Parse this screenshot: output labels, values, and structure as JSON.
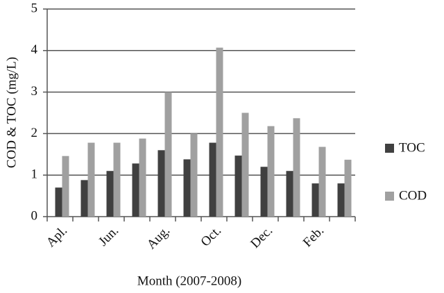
{
  "chart_data": {
    "type": "bar",
    "x_label": "Month (2007-2008)",
    "y_label": "COD & TOC (mg/L)",
    "categories": [
      "Apl.",
      null,
      "Jun.",
      null,
      "Aug.",
      null,
      "Oct.",
      null,
      "Dec.",
      null,
      "Feb.",
      null
    ],
    "series": [
      {
        "name": "TOC",
        "color": "#404040",
        "values": [
          0.7,
          0.88,
          1.1,
          1.28,
          1.6,
          1.38,
          1.78,
          1.47,
          1.2,
          1.1,
          0.8,
          0.8
        ]
      },
      {
        "name": "COD",
        "color": "#a0a0a0",
        "values": [
          1.46,
          1.78,
          1.78,
          1.88,
          3.0,
          2.0,
          4.07,
          2.5,
          2.18,
          2.37,
          1.68,
          1.37
        ]
      }
    ],
    "ylim": [
      0,
      5
    ],
    "yticks": [
      0,
      1,
      2,
      3,
      4,
      5
    ],
    "grid": true,
    "legend": "right"
  }
}
